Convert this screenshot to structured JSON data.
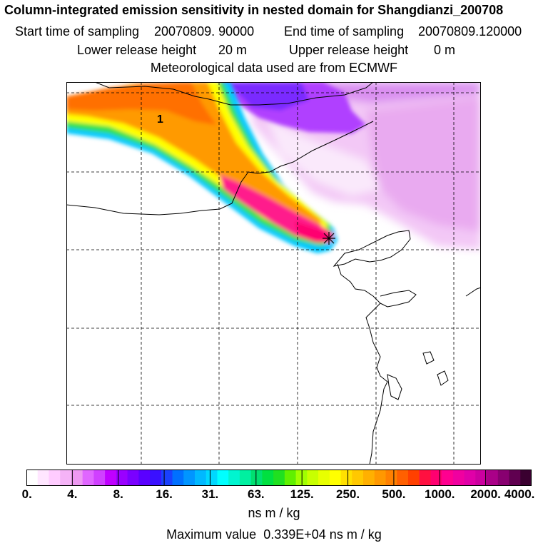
{
  "header": {
    "title": "Column-integrated emission sensitivity in nested domain for Shangdianzi_200708",
    "start_label": "Start time of sampling",
    "start_value": "20070809. 90000",
    "end_label": "End time of sampling",
    "end_value": "20070809.120000",
    "lower_label": "Lower release height",
    "lower_value": "20 m",
    "upper_label": "Upper release height",
    "upper_value": "0 m",
    "met_line": "Meteorological data used are from ECMWF"
  },
  "map": {
    "plume_label": "1",
    "receptor_marker": "receptor-star",
    "plume_peak_color": "#ff1a8c"
  },
  "colorbar": {
    "tick_labels": [
      "0.",
      "4.",
      "8.",
      "16.",
      "31.",
      "63.",
      "125.",
      "250.",
      "500.",
      "1000.",
      "2000.",
      "4000."
    ],
    "colors": [
      "#ffffff",
      "#ffe6ff",
      "#ffccff",
      "#f5b3f7",
      "#ee99f2",
      "#e066ff",
      "#d040ff",
      "#c000ff",
      "#9a00ff",
      "#7a00ff",
      "#5a00ff",
      "#3a10ff",
      "#1a40ff",
      "#0070ff",
      "#0095ff",
      "#00b8ff",
      "#00d8ff",
      "#00ffff",
      "#00f5d0",
      "#00f0a0",
      "#00e070",
      "#00e040",
      "#20e020",
      "#60f000",
      "#a0ff00",
      "#c8ff00",
      "#e8ff00",
      "#ffff00",
      "#ffe000",
      "#ffc800",
      "#ffb000",
      "#ff9800",
      "#ff8000",
      "#ff6000",
      "#ff4000",
      "#ff1040",
      "#ff0070",
      "#ff0090",
      "#f000a0",
      "#e000a8",
      "#cc00a0",
      "#aa0088",
      "#880070",
      "#600050",
      "#3a0030"
    ]
  },
  "footer": {
    "unit": "ns m / kg",
    "max_label": "Maximum value",
    "max_value": "0.339E+04 ns m / kg"
  }
}
